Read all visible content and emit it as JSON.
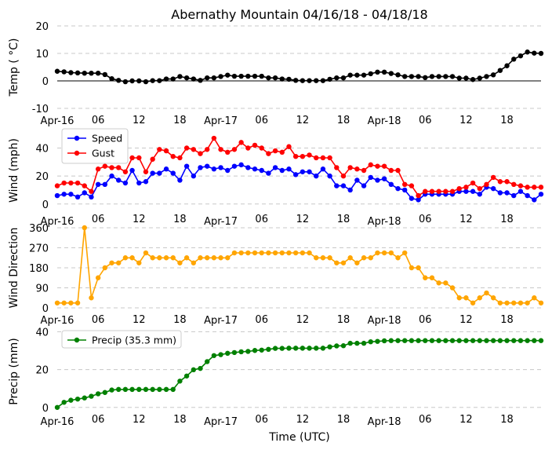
{
  "chart_data": [
    {
      "type": "line",
      "title": "Abernathy Mountain 04/16/18 - 04/18/18",
      "ylabel": "Temp ( °C)",
      "ylim": [
        -10,
        20
      ],
      "yticks": [
        -10,
        0,
        10,
        20
      ],
      "xlabel": "",
      "xlim": [
        0,
        71
      ],
      "grid": true,
      "zero_line": true,
      "legend": "",
      "series": [
        {
          "name": "Temp",
          "color": "#000000",
          "values": [
            3.5,
            3.3,
            3.0,
            2.9,
            2.8,
            2.8,
            2.8,
            2.3,
            0.8,
            0.2,
            -0.3,
            0.0,
            0.0,
            -0.3,
            0.1,
            0.1,
            0.7,
            0.7,
            1.6,
            1.1,
            0.7,
            0.2,
            1.1,
            1.1,
            1.6,
            2.1,
            1.7,
            1.7,
            1.7,
            1.7,
            1.7,
            1.1,
            1.1,
            0.7,
            0.6,
            0.2,
            0.1,
            0.1,
            0.1,
            0.1,
            0.6,
            1.1,
            1.1,
            2.1,
            2.1,
            2.1,
            2.6,
            3.2,
            3.2,
            2.7,
            2.2,
            1.6,
            1.6,
            1.6,
            1.2,
            1.6,
            1.6,
            1.6,
            1.6,
            1.0,
            1.0,
            0.5,
            1.0,
            1.6,
            2.2,
            3.8,
            5.5,
            7.9,
            9.1,
            10.5,
            10.1,
            10.0
          ]
        }
      ]
    },
    {
      "type": "line",
      "title": "",
      "ylabel": "Wind (mph)",
      "ylim": [
        -8,
        56
      ],
      "yticks": [
        0,
        20,
        40
      ],
      "xlabel": "",
      "xlim": [
        0,
        71
      ],
      "grid": true,
      "legend": "top-left",
      "series": [
        {
          "name": "Speed",
          "color": "#0000ff",
          "values": [
            6,
            7,
            7,
            5,
            8,
            5,
            14,
            14,
            20,
            17,
            15,
            24,
            15,
            16,
            22,
            22,
            25,
            22,
            17,
            27,
            20,
            26,
            27,
            25,
            26,
            24,
            27,
            28,
            26,
            25,
            24,
            22,
            26,
            24,
            25,
            21,
            23,
            23,
            20,
            25,
            20,
            13,
            13,
            10,
            17,
            13,
            19,
            17,
            18,
            14,
            11,
            10,
            4,
            3,
            7,
            7,
            7,
            7,
            7,
            9,
            9,
            9,
            7,
            12,
            11,
            8,
            8,
            6,
            9,
            6,
            3,
            7
          ]
        },
        {
          "name": "Gust",
          "color": "#ff0000",
          "values": [
            13,
            15,
            15,
            15,
            13,
            9,
            25,
            27,
            26,
            26,
            23,
            33,
            33,
            23,
            32,
            39,
            38,
            34,
            33,
            40,
            39,
            36,
            39,
            47,
            39,
            37,
            39,
            44,
            40,
            42,
            40,
            36,
            38,
            37,
            41,
            34,
            34,
            35,
            33,
            33,
            33,
            26,
            20,
            26,
            25,
            24,
            28,
            27,
            27,
            24,
            24,
            14,
            13,
            6,
            9,
            9,
            9,
            9,
            9,
            11,
            12,
            15,
            11,
            14,
            19,
            16,
            16,
            14,
            13,
            12,
            12,
            12
          ]
        }
      ]
    },
    {
      "type": "line",
      "title": "",
      "ylabel": "Wind Direction",
      "ylim": [
        0,
        360
      ],
      "yticks": [
        0,
        90,
        180,
        270,
        360
      ],
      "xlabel": "",
      "xlim": [
        0,
        71
      ],
      "grid": true,
      "legend": "",
      "series": [
        {
          "name": "Direction",
          "color": "#ffa500",
          "values": [
            22,
            22,
            22,
            22,
            360,
            45,
            135,
            180,
            202,
            202,
            225,
            225,
            202,
            247,
            225,
            225,
            225,
            225,
            202,
            225,
            202,
            225,
            225,
            225,
            225,
            225,
            247,
            247,
            247,
            247,
            247,
            247,
            247,
            247,
            247,
            247,
            247,
            247,
            225,
            225,
            225,
            202,
            202,
            225,
            202,
            225,
            225,
            247,
            247,
            247,
            225,
            247,
            180,
            180,
            135,
            135,
            112,
            112,
            90,
            45,
            45,
            22,
            45,
            67,
            45,
            22,
            22,
            22,
            22,
            22,
            45,
            22
          ]
        }
      ]
    },
    {
      "type": "line",
      "title": "",
      "ylabel": "Precip (mm)",
      "ylim": [
        -3,
        41
      ],
      "yticks": [
        0,
        20,
        40
      ],
      "xlabel": "Time (UTC)",
      "xlim": [
        0,
        71
      ],
      "grid": true,
      "legend": "top-left",
      "series": [
        {
          "name": "Precip (35.3 mm)",
          "color": "#008000",
          "values": [
            0,
            2.7,
            3.8,
            4.4,
            5.0,
            5.9,
            7.2,
            7.9,
            9.2,
            9.5,
            9.5,
            9.5,
            9.5,
            9.5,
            9.5,
            9.5,
            9.5,
            9.5,
            13.9,
            16.6,
            19.9,
            20.6,
            24.2,
            27.4,
            27.9,
            28.6,
            29.0,
            29.4,
            29.6,
            30.1,
            30.3,
            30.7,
            31.2,
            31.2,
            31.3,
            31.3,
            31.3,
            31.3,
            31.3,
            31.3,
            32.0,
            32.5,
            32.6,
            33.9,
            33.9,
            33.9,
            34.7,
            34.9,
            35.2,
            35.3,
            35.3,
            35.3,
            35.3,
            35.3,
            35.3,
            35.3,
            35.3,
            35.3,
            35.3,
            35.3,
            35.3,
            35.3,
            35.3,
            35.3,
            35.3,
            35.3,
            35.3,
            35.3,
            35.3,
            35.3,
            35.3,
            35.3
          ]
        }
      ]
    }
  ],
  "x_ticks": [
    {
      "i": 0,
      "label": "Apr-16",
      "row": 1
    },
    {
      "i": 6,
      "label": "06",
      "row": 0
    },
    {
      "i": 12,
      "label": "12",
      "row": 0
    },
    {
      "i": 18,
      "label": "18",
      "row": 0
    },
    {
      "i": 24,
      "label": "Apr-17",
      "row": 1
    },
    {
      "i": 30,
      "label": "06",
      "row": 0
    },
    {
      "i": 36,
      "label": "12",
      "row": 0
    },
    {
      "i": 42,
      "label": "18",
      "row": 0
    },
    {
      "i": 48,
      "label": "Apr-18",
      "row": 1
    },
    {
      "i": 54,
      "label": "06",
      "row": 0
    },
    {
      "i": 60,
      "label": "12",
      "row": 0
    },
    {
      "i": 66,
      "label": "18",
      "row": 0
    }
  ]
}
